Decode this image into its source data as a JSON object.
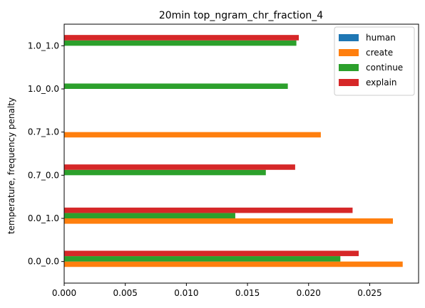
{
  "chart_data": {
    "type": "bar",
    "orientation": "horizontal",
    "title": "20min top_ngram_chr_fraction_4",
    "xlabel": "",
    "ylabel": "temperature, frequency penalty",
    "categories": [
      "0.0_0.0",
      "0.0_1.0",
      "0.7_0.0",
      "0.7_1.0",
      "1.0_0.0",
      "1.0_1.0"
    ],
    "xlim": [
      0,
      0.029
    ],
    "xticks": [
      0.0,
      0.005,
      0.01,
      0.015,
      0.02,
      0.025
    ],
    "xtick_labels": [
      "0.000",
      "0.005",
      "0.010",
      "0.015",
      "0.020",
      "0.025"
    ],
    "grid": false,
    "legend_position": "top-right",
    "series": [
      {
        "name": "human",
        "color": "#1f77b4",
        "values": [
          null,
          null,
          null,
          null,
          null,
          null
        ]
      },
      {
        "name": "create",
        "color": "#ff7f0e",
        "values": [
          0.0277,
          0.0269,
          null,
          0.021,
          null,
          null
        ]
      },
      {
        "name": "continue",
        "color": "#2ca02c",
        "values": [
          0.0226,
          0.014,
          0.0165,
          null,
          0.0183,
          0.019
        ]
      },
      {
        "name": "explain",
        "color": "#d62728",
        "values": [
          0.0241,
          0.0236,
          0.0189,
          null,
          null,
          0.0192
        ]
      }
    ]
  }
}
